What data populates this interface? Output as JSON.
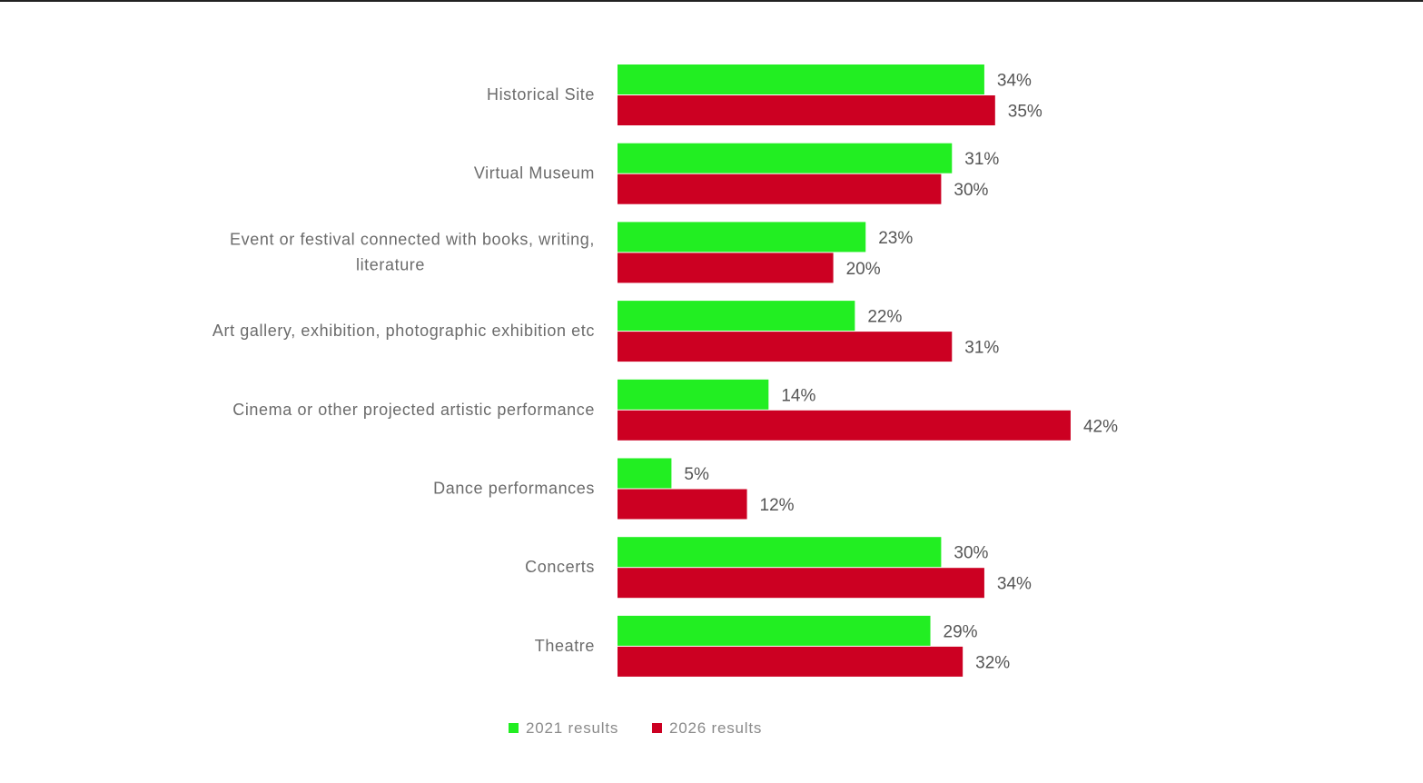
{
  "chart_data": {
    "type": "bar",
    "orientation": "horizontal",
    "categories": [
      "Historical Site",
      "Virtual Museum",
      "Event or festival connected with books, writing, literature",
      "Art gallery, exhibition, photographic exhibition etc",
      "Cinema or other projected artistic performance",
      "Dance performances",
      "Concerts",
      "Theatre"
    ],
    "category_lines": [
      [
        "Historical Site"
      ],
      [
        "Virtual Museum"
      ],
      [
        "Event or festival connected with books, writing,",
        "literature"
      ],
      [
        "Art gallery, exhibition, photographic exhibition etc"
      ],
      [
        "Cinema or other projected artistic performance"
      ],
      [
        "Dance performances"
      ],
      [
        "Concerts"
      ],
      [
        "Theatre"
      ]
    ],
    "series": [
      {
        "name": "2021 results",
        "color": "#22ee22",
        "values": [
          34,
          31,
          23,
          22,
          14,
          5,
          30,
          29
        ]
      },
      {
        "name": "2026 results",
        "color": "#cc0022",
        "values": [
          35,
          30,
          20,
          31,
          42,
          12,
          34,
          32
        ]
      }
    ],
    "value_suffix": "%",
    "xlim": [
      0,
      100
    ],
    "grid": false,
    "legend_position": "bottom"
  }
}
